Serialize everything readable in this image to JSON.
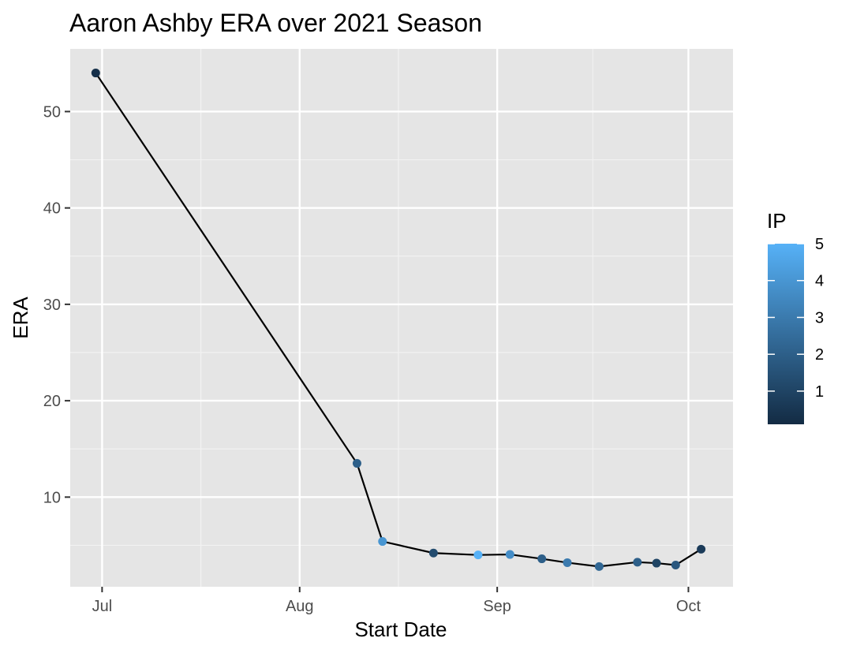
{
  "chart_data": {
    "type": "line",
    "title": "Aaron Ashby ERA over 2021 Season",
    "xlabel": "Start Date",
    "ylabel": "ERA",
    "x_ticks": [
      {
        "date": "2021-07-01",
        "label": "Jul"
      },
      {
        "date": "2021-08-01",
        "label": "Aug"
      },
      {
        "date": "2021-09-01",
        "label": "Sep"
      },
      {
        "date": "2021-10-01",
        "label": "Oct"
      }
    ],
    "xlim": [
      "2021-06-26",
      "2021-10-08"
    ],
    "y_ticks": [
      10,
      20,
      30,
      40,
      50
    ],
    "ylim": [
      0.7,
      56.5
    ],
    "grid": true,
    "legend": {
      "title": "IP",
      "position": "right",
      "min": 0.1,
      "max": 5,
      "ticks": [
        1,
        2,
        3,
        4,
        5
      ],
      "color_low": "#132B43",
      "color_high": "#56B1F7"
    },
    "line_color": "#000000",
    "panel_background": "#e5e5e5",
    "points": [
      {
        "x": "2021-06-30",
        "y": 54.0,
        "ip": 0.3
      },
      {
        "x": "2021-08-10",
        "y": 13.5,
        "ip": 2.0
      },
      {
        "x": "2021-08-14",
        "y": 5.4,
        "ip": 4.0
      },
      {
        "x": "2021-08-22",
        "y": 4.2,
        "ip": 1.3
      },
      {
        "x": "2021-08-29",
        "y": 4.0,
        "ip": 5.0
      },
      {
        "x": "2021-09-03",
        "y": 4.05,
        "ip": 3.7
      },
      {
        "x": "2021-09-08",
        "y": 3.6,
        "ip": 2.0
      },
      {
        "x": "2021-09-12",
        "y": 3.2,
        "ip": 3.0
      },
      {
        "x": "2021-09-17",
        "y": 2.8,
        "ip": 2.3
      },
      {
        "x": "2021-09-23",
        "y": 3.25,
        "ip": 2.0
      },
      {
        "x": "2021-09-26",
        "y": 3.15,
        "ip": 1.0
      },
      {
        "x": "2021-09-29",
        "y": 2.95,
        "ip": 1.7
      },
      {
        "x": "2021-10-03",
        "y": 4.6,
        "ip": 0.7
      }
    ]
  }
}
